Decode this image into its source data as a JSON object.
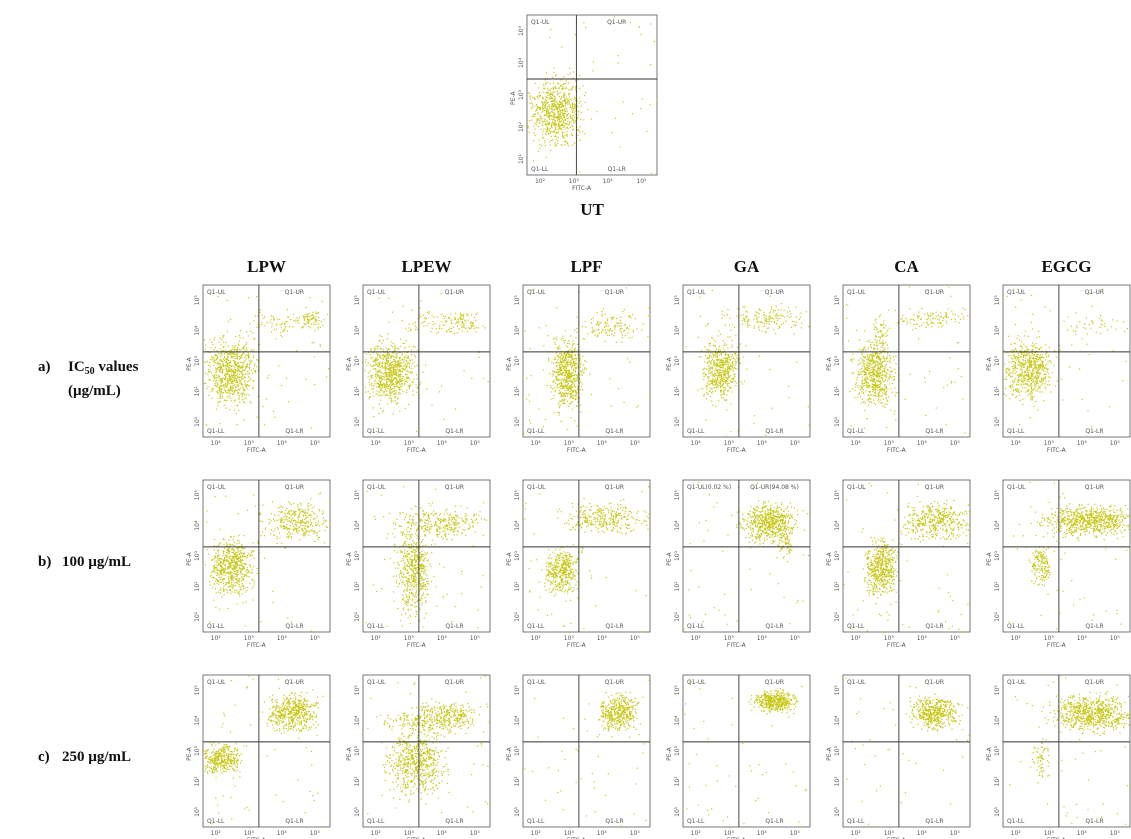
{
  "figure": {
    "untreated": {
      "label": "UT"
    },
    "columns": [
      "LPW",
      "LPEW",
      "LPF",
      "GA",
      "CA",
      "EGCG"
    ],
    "rows": [
      {
        "letter": "a)",
        "label_parts": [
          "IC",
          "50",
          " values"
        ],
        "label_line2": "(µg/mL)"
      },
      {
        "letter": "b)",
        "label": "100 µg/mL",
        "quadrant_overrides": {
          "GA": {
            "ul": "Q1-UL(0.02 %)",
            "ur": "Q1-UR(94.08 %)"
          }
        }
      },
      {
        "letter": "c)",
        "label": "250 µg/mL"
      }
    ],
    "quadrant_labels": {
      "ul": "Q1-UL",
      "ur": "Q1-UR",
      "ll": "Q1-LL",
      "lr": "Q1-LR"
    },
    "x_axis_label": "FITC-A",
    "y_axis_label": "PE-A",
    "x_ticks": [
      "10²",
      "10³",
      "10⁴",
      "10⁵"
    ],
    "y_ticks": [
      "10¹",
      "10²",
      "10³",
      "10⁴",
      "10⁵"
    ]
  }
}
